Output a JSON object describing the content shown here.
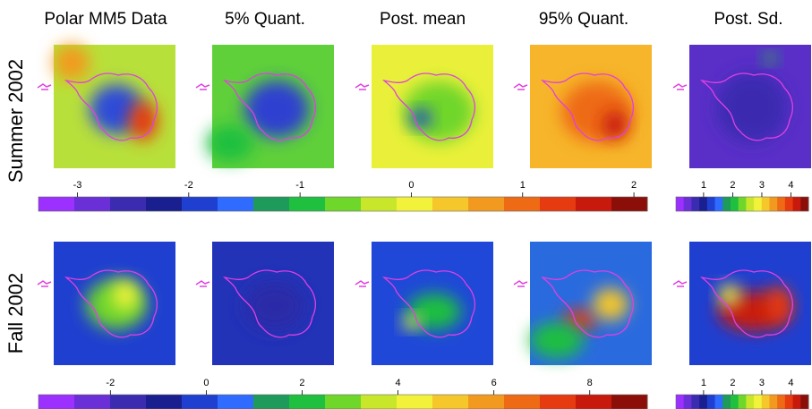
{
  "column_titles": [
    "Polar MM5 Data",
    "5% Quant.",
    "Post. mean",
    "95% Quant.",
    "Post. Sd."
  ],
  "row_labels": [
    "Summer 2002",
    "Fall 2002"
  ],
  "colormap": [
    "#9b30ff",
    "#6a2fd6",
    "#3b2bb0",
    "#1a1f8f",
    "#1f3fd0",
    "#2f6bff",
    "#1e9a5a",
    "#1fbf3f",
    "#6fd62a",
    "#c8e62a",
    "#f2f23a",
    "#f6c72a",
    "#f29a1f",
    "#ee6a15",
    "#e63a10",
    "#c81a0c",
    "#8b0f08"
  ],
  "colorbars": [
    {
      "lim": [
        -3.35,
        2.12
      ],
      "ticks": [
        -3,
        -2,
        -1,
        0,
        1,
        2
      ]
    },
    {
      "lim": [
        0.05,
        4.6
      ],
      "ticks": [
        1,
        2,
        3,
        4
      ]
    },
    {
      "lim": [
        -3.5,
        9.2
      ],
      "ticks": [
        -2,
        0,
        2,
        4,
        6,
        8
      ]
    },
    {
      "lim": [
        0.05,
        4.6
      ],
      "ticks": [
        1,
        2,
        3,
        4
      ]
    }
  ]
}
